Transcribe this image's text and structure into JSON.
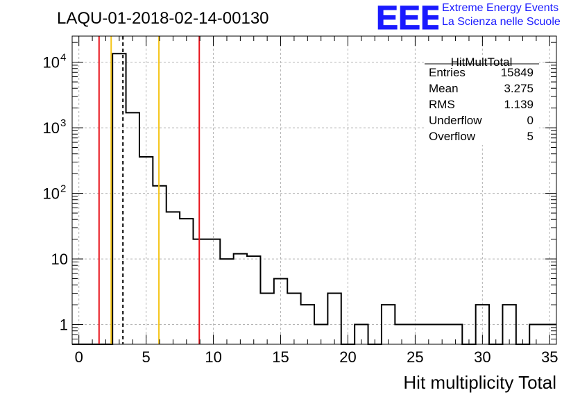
{
  "header": {
    "run_title": "LAQU-01-2018-02-14-00130",
    "logo_text": "EEE",
    "logo_line1": "Extreme Energy Events",
    "logo_line2": "La Scienza nelle Scuole"
  },
  "stats_box": {
    "title": "HitMultTotal",
    "rows": [
      {
        "label": "Entries",
        "value": "15849"
      },
      {
        "label": "Mean",
        "value": "3.275"
      },
      {
        "label": "RMS",
        "value": "1.139"
      },
      {
        "label": "Underflow",
        "value": "0"
      },
      {
        "label": "Overflow",
        "value": "5"
      }
    ]
  },
  "colors": {
    "histogram": "#000000",
    "red_line": "#e8141c",
    "yellow_line": "#f5c518",
    "grid": "#b4b4b4",
    "logo": "#1a1aff"
  },
  "chart_data": {
    "type": "bar",
    "histogram": "step",
    "title": "",
    "xlabel": "Hit multiplicity Total",
    "ylabel": "",
    "xlim": [
      -0.5,
      35.5
    ],
    "ylim": [
      0.5,
      25000
    ],
    "yscale": "log",
    "grid": true,
    "x_ticks": [
      0,
      5,
      10,
      15,
      20,
      25,
      30,
      35
    ],
    "y_ticks": [
      {
        "value": 1,
        "label": "1"
      },
      {
        "value": 10,
        "label": "10"
      },
      {
        "value": 100,
        "label": "10",
        "exp": "2"
      },
      {
        "value": 1000,
        "label": "10",
        "exp": "3"
      },
      {
        "value": 10000,
        "label": "10",
        "exp": "4"
      }
    ],
    "bin_edges": [
      -0.5,
      35.5
    ],
    "bin_width": 1,
    "values": [
      0,
      0,
      0,
      13500,
      1700,
      360,
      130,
      52,
      41,
      20,
      20,
      10,
      12,
      11,
      3,
      5,
      3,
      2,
      1,
      3,
      0,
      1,
      0,
      2,
      1,
      1,
      1,
      1,
      1,
      0,
      2,
      0,
      2,
      0,
      1,
      1
    ],
    "vertical_lines": [
      {
        "x": 1.5,
        "color": "red",
        "style": "solid"
      },
      {
        "x": 8.95,
        "color": "red",
        "style": "solid"
      },
      {
        "x": 2.4,
        "color": "yellow",
        "style": "solid"
      },
      {
        "x": 5.95,
        "color": "yellow",
        "style": "solid"
      },
      {
        "x": 3.275,
        "color": "black",
        "style": "dashed"
      }
    ]
  }
}
